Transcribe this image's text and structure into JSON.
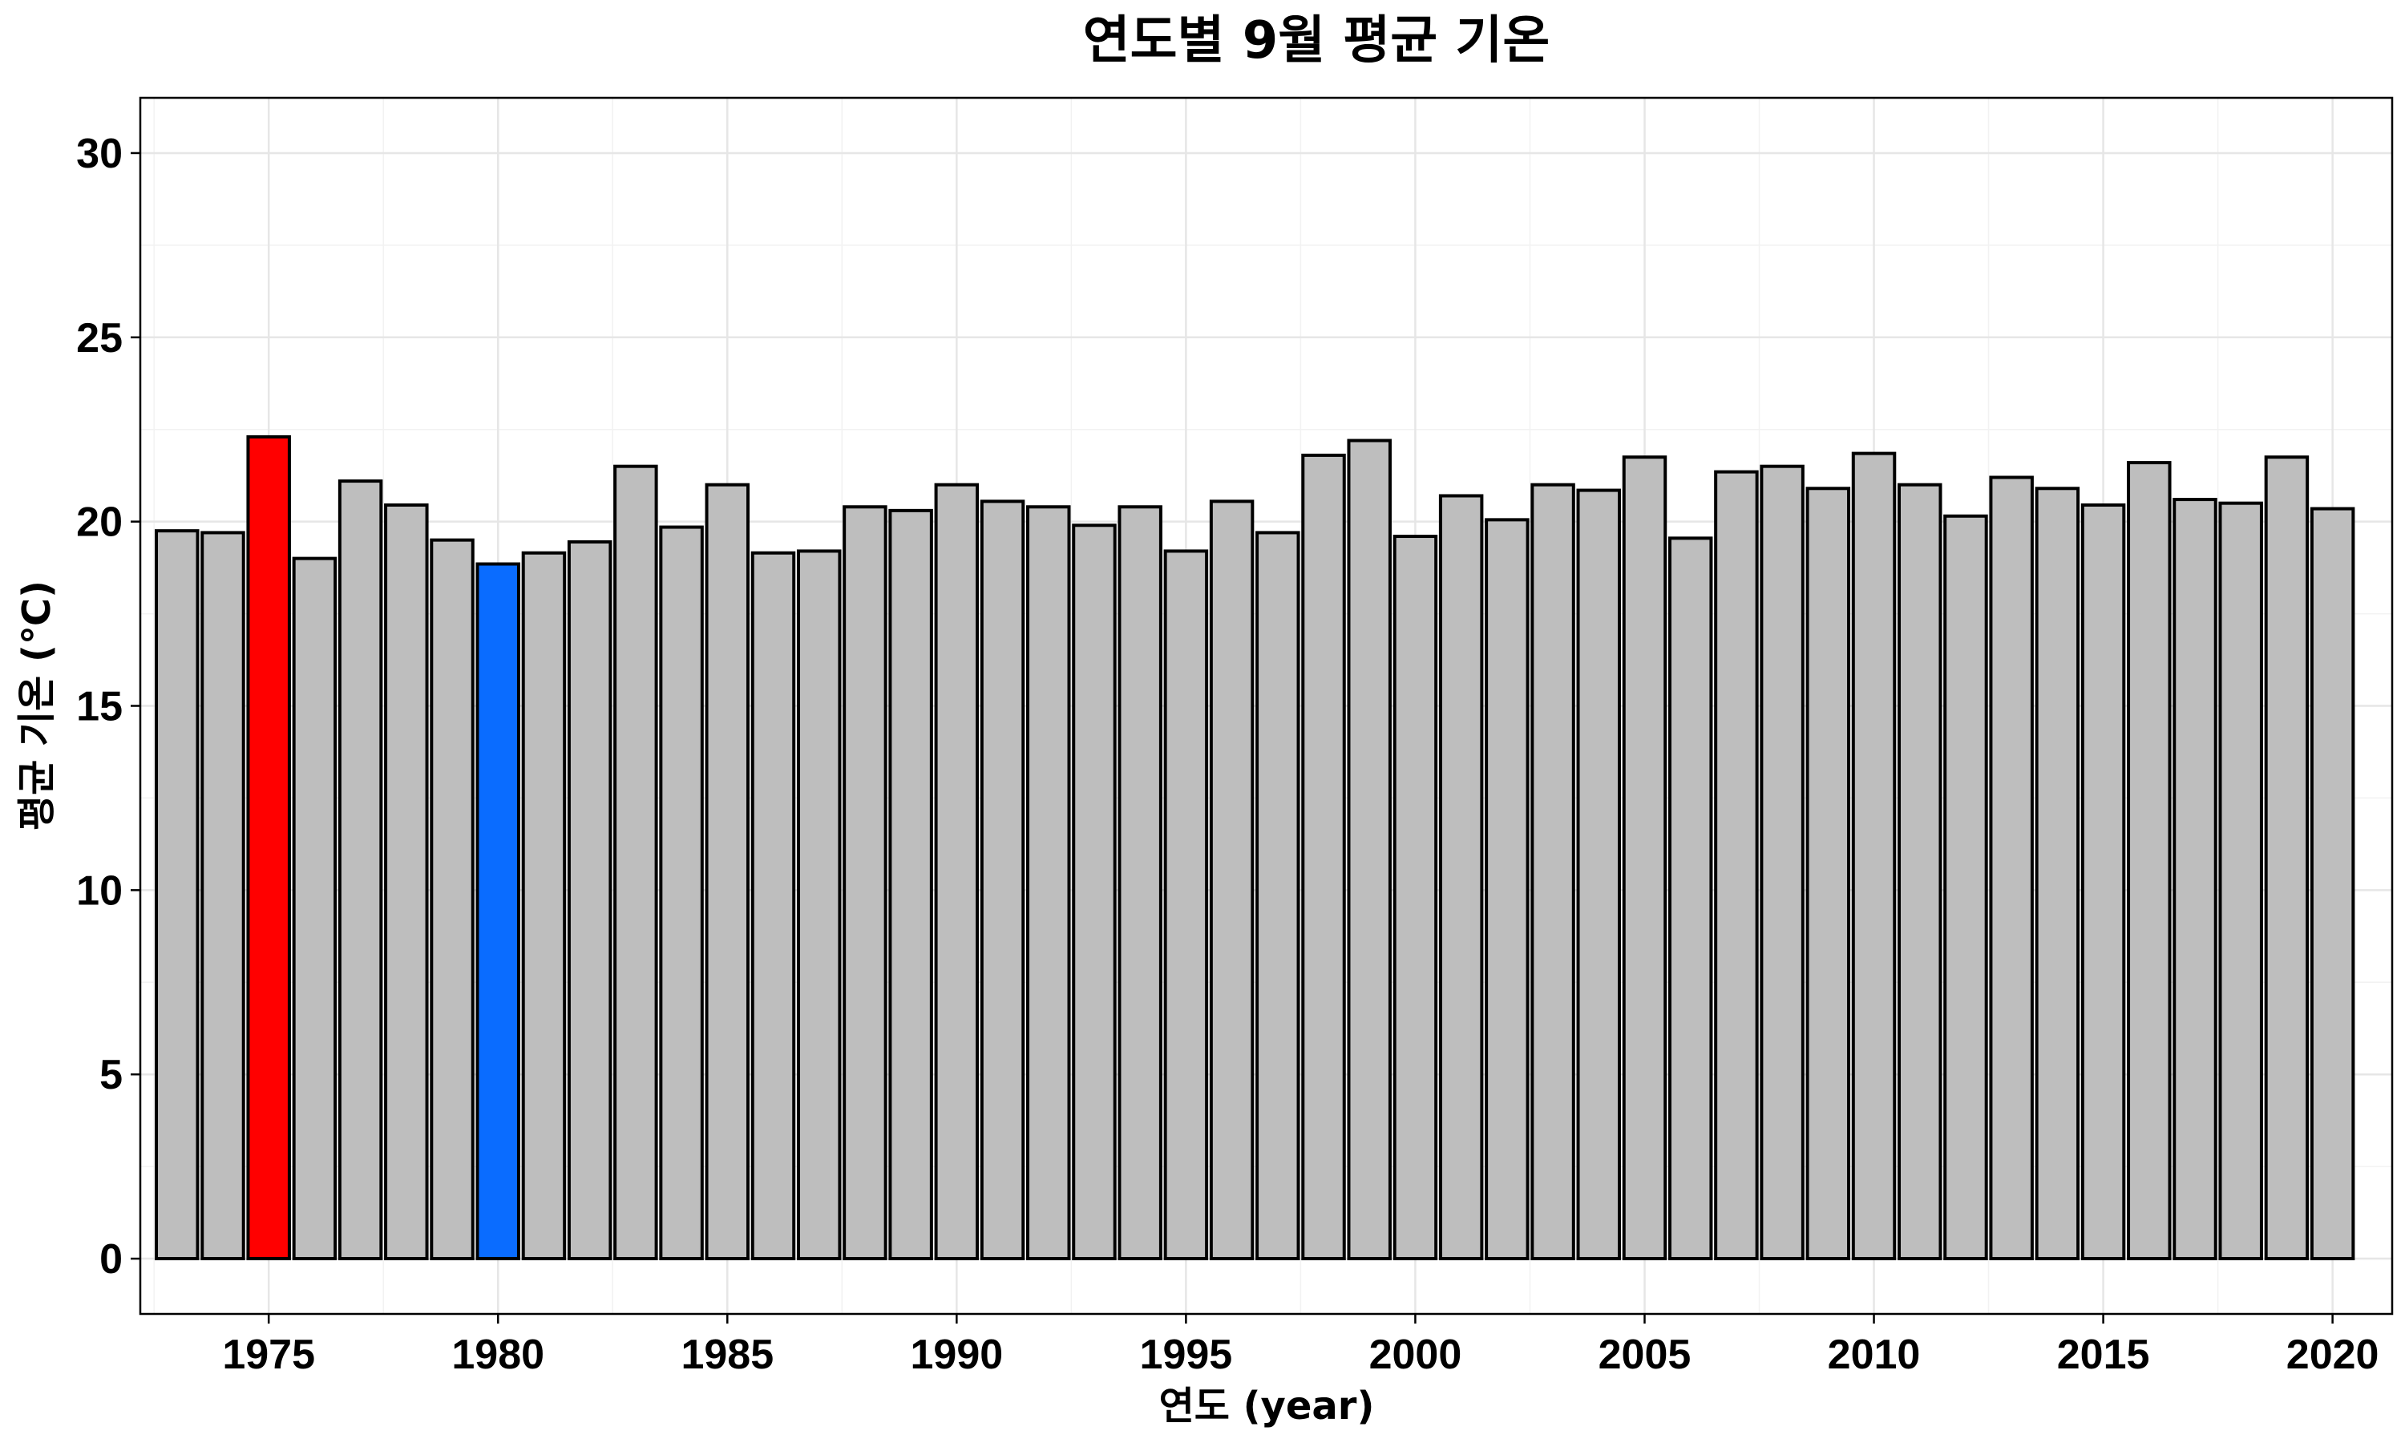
{
  "chart_data": {
    "type": "bar",
    "title": "연도별 9월 평균 기온",
    "xlabel": "연도 (year)",
    "ylabel": "평균 기온 (℃)",
    "ylim": [
      -1.5,
      31.5
    ],
    "xlim": [
      1972.2,
      2021.3
    ],
    "y_ticks": [
      0,
      5,
      10,
      15,
      20,
      25,
      30
    ],
    "x_ticks": [
      1975,
      1980,
      1985,
      1990,
      1995,
      2000,
      2005,
      2010,
      2015,
      2020
    ],
    "grid": true,
    "default_color": "#bebebe",
    "highlight_colors": {
      "1975": "#ff0000",
      "1980": "#0a6cff"
    },
    "categories": [
      1973,
      1974,
      1975,
      1976,
      1977,
      1978,
      1979,
      1980,
      1981,
      1982,
      1983,
      1984,
      1985,
      1986,
      1987,
      1988,
      1989,
      1990,
      1991,
      1992,
      1993,
      1994,
      1995,
      1996,
      1997,
      1998,
      1999,
      2000,
      2001,
      2002,
      2003,
      2004,
      2005,
      2006,
      2007,
      2008,
      2009,
      2010,
      2011,
      2012,
      2013,
      2014,
      2015,
      2016,
      2017,
      2018,
      2019,
      2020
    ],
    "values": [
      19.75,
      19.7,
      22.3,
      19.0,
      21.1,
      20.45,
      19.5,
      18.85,
      19.15,
      19.45,
      21.5,
      19.85,
      21.0,
      19.15,
      19.2,
      20.4,
      20.3,
      21.0,
      20.55,
      20.4,
      19.9,
      20.4,
      19.2,
      20.55,
      19.7,
      21.8,
      22.2,
      19.6,
      20.7,
      20.05,
      21.0,
      20.85,
      21.75,
      19.55,
      21.35,
      21.5,
      20.9,
      21.85,
      21.0,
      20.15,
      21.2,
      20.9,
      20.45,
      21.6,
      20.6,
      20.5,
      21.75,
      20.35
    ]
  }
}
